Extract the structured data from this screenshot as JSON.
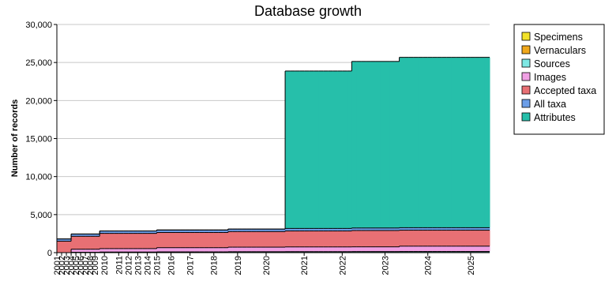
{
  "chart_data": {
    "type": "stacked-step-area",
    "title": "Database growth",
    "y_label": "Number of records",
    "categories": [
      "2001",
      "2002",
      "2003",
      "2004",
      "2005",
      "2006",
      "2007",
      "2008",
      "2009",
      null,
      "2010",
      null,
      null,
      "2011",
      null,
      "2012",
      null,
      "2013",
      null,
      "2014",
      null,
      "2015",
      null,
      null,
      "2016",
      null,
      null,
      null,
      "2017",
      null,
      null,
      null,
      null,
      "2018",
      null,
      null,
      null,
      null,
      "2019",
      null,
      null,
      null,
      null,
      null,
      "2020",
      null,
      null,
      null,
      null,
      null,
      null,
      null,
      "2021",
      null,
      null,
      null,
      null,
      null,
      null,
      null,
      "2022",
      null,
      null,
      null,
      null,
      null,
      null,
      null,
      null,
      "2023",
      null,
      null,
      null,
      null,
      null,
      null,
      null,
      null,
      "2024",
      null,
      null,
      null,
      null,
      null,
      null,
      null,
      null,
      "2025",
      null,
      null,
      null
    ],
    "series": [
      {
        "name": "Specimens",
        "color": "#f2e22a",
        "values": [
          0,
          0,
          0,
          0,
          0,
          0,
          0,
          0,
          0,
          0,
          0,
          0,
          0,
          0,
          0,
          0,
          0,
          0,
          0,
          0,
          0,
          0,
          0,
          0,
          0,
          0,
          0,
          0,
          0,
          0,
          0,
          0,
          0,
          0,
          0,
          0,
          0,
          0,
          0,
          0,
          0,
          0,
          0,
          0,
          0,
          0,
          0,
          0,
          0,
          0,
          0,
          0,
          0,
          0,
          0,
          0,
          0,
          0,
          0,
          0,
          0,
          0,
          0,
          0,
          0,
          0,
          0,
          0,
          0,
          0,
          0,
          0,
          0,
          0,
          0,
          0,
          0,
          0,
          0,
          0,
          0,
          0,
          0,
          0,
          0,
          0,
          0,
          0,
          0,
          0,
          0
        ]
      },
      {
        "name": "Vernaculars",
        "color": "#f0a81c",
        "values": [
          0,
          0,
          0,
          10,
          10,
          10,
          10,
          10,
          10,
          20,
          20,
          20,
          20,
          20,
          20,
          20,
          20,
          20,
          20,
          20,
          20,
          20,
          20,
          20,
          20,
          20,
          20,
          20,
          20,
          20,
          20,
          20,
          20,
          20,
          20,
          20,
          30,
          30,
          30,
          30,
          30,
          30,
          30,
          30,
          30,
          30,
          30,
          30,
          30,
          30,
          30,
          30,
          30,
          30,
          30,
          30,
          30,
          30,
          30,
          30,
          30,
          30,
          30,
          30,
          30,
          30,
          30,
          30,
          30,
          30,
          30,
          30,
          30,
          30,
          30,
          30,
          30,
          30,
          30,
          30,
          30,
          30,
          30,
          30,
          30,
          30,
          30,
          30,
          30,
          30,
          30
        ]
      },
      {
        "name": "Sources",
        "color": "#7ee8e4",
        "values": [
          0,
          0,
          0,
          40,
          40,
          40,
          40,
          40,
          40,
          60,
          60,
          60,
          60,
          60,
          60,
          60,
          60,
          60,
          60,
          60,
          60,
          80,
          80,
          80,
          80,
          80,
          80,
          80,
          80,
          80,
          80,
          80,
          80,
          80,
          80,
          80,
          90,
          90,
          90,
          90,
          90,
          90,
          90,
          90,
          90,
          90,
          90,
          90,
          100,
          100,
          100,
          100,
          100,
          100,
          100,
          100,
          100,
          100,
          100,
          100,
          100,
          100,
          110,
          110,
          110,
          110,
          110,
          110,
          110,
          110,
          110,
          110,
          120,
          120,
          120,
          120,
          120,
          120,
          120,
          120,
          120,
          120,
          120,
          120,
          120,
          120,
          120,
          120,
          120,
          120,
          120
        ]
      },
      {
        "name": "Images",
        "color": "#f0a0e4",
        "values": [
          0,
          0,
          0,
          400,
          400,
          400,
          400,
          400,
          400,
          450,
          450,
          450,
          450,
          450,
          450,
          450,
          450,
          450,
          450,
          450,
          450,
          550,
          550,
          550,
          550,
          550,
          550,
          550,
          550,
          550,
          550,
          550,
          550,
          550,
          550,
          550,
          600,
          600,
          600,
          600,
          600,
          600,
          600,
          600,
          600,
          600,
          600,
          600,
          620,
          620,
          620,
          620,
          620,
          620,
          620,
          620,
          620,
          620,
          620,
          620,
          620,
          620,
          620,
          620,
          620,
          620,
          620,
          620,
          620,
          620,
          620,
          620,
          700,
          700,
          700,
          700,
          700,
          700,
          700,
          700,
          700,
          700,
          700,
          700,
          700,
          700,
          700,
          700,
          700,
          700,
          700
        ]
      },
      {
        "name": "Accepted taxa",
        "color": "#e87074",
        "values": [
          1500,
          1500,
          1500,
          1700,
          1700,
          1700,
          1700,
          1700,
          1700,
          2000,
          2000,
          2000,
          2000,
          2000,
          2000,
          2000,
          2000,
          2000,
          2000,
          2000,
          2000,
          2000,
          2000,
          2000,
          2000,
          2000,
          2000,
          2000,
          2000,
          2000,
          2000,
          2000,
          2000,
          2000,
          2000,
          2000,
          2050,
          2050,
          2050,
          2050,
          2050,
          2050,
          2050,
          2050,
          2050,
          2050,
          2050,
          2050,
          2100,
          2100,
          2100,
          2100,
          2100,
          2100,
          2100,
          2100,
          2100,
          2100,
          2100,
          2100,
          2100,
          2100,
          2150,
          2150,
          2150,
          2150,
          2150,
          2150,
          2150,
          2150,
          2150,
          2150,
          2100,
          2100,
          2100,
          2100,
          2100,
          2100,
          2100,
          2100,
          2100,
          2100,
          2100,
          2100,
          2100,
          2100,
          2100,
          2100,
          2100,
          2100,
          2100
        ]
      },
      {
        "name": "All taxa",
        "color": "#6c9ee8",
        "values": [
          300,
          300,
          300,
          300,
          300,
          300,
          300,
          300,
          300,
          320,
          320,
          320,
          320,
          320,
          320,
          320,
          320,
          320,
          320,
          320,
          320,
          330,
          330,
          330,
          330,
          330,
          330,
          330,
          330,
          330,
          330,
          330,
          330,
          330,
          330,
          330,
          330,
          330,
          330,
          330,
          330,
          330,
          330,
          330,
          330,
          330,
          330,
          330,
          330,
          330,
          330,
          330,
          330,
          330,
          330,
          330,
          330,
          330,
          330,
          330,
          330,
          330,
          330,
          330,
          330,
          330,
          330,
          330,
          330,
          330,
          330,
          330,
          330,
          330,
          330,
          330,
          330,
          330,
          330,
          330,
          330,
          330,
          330,
          330,
          330,
          330,
          330,
          330,
          330,
          330,
          330
        ]
      },
      {
        "name": "Attributes",
        "color": "#26bfaa",
        "values": [
          0,
          0,
          0,
          0,
          0,
          0,
          0,
          0,
          0,
          0,
          0,
          0,
          0,
          0,
          0,
          0,
          0,
          0,
          0,
          0,
          0,
          0,
          0,
          0,
          0,
          0,
          0,
          0,
          0,
          0,
          0,
          0,
          0,
          0,
          0,
          0,
          0,
          0,
          0,
          0,
          0,
          0,
          0,
          0,
          0,
          0,
          0,
          0,
          20700,
          20700,
          20700,
          20700,
          20700,
          20700,
          20700,
          20700,
          20700,
          20700,
          20700,
          20700,
          20700,
          20700,
          21900,
          21900,
          21900,
          21900,
          21900,
          21900,
          21900,
          21900,
          21900,
          21900,
          22400,
          22400,
          22400,
          22400,
          22400,
          22400,
          22400,
          22400,
          22400,
          22400,
          22400,
          22400,
          22400,
          22400,
          22400,
          22400,
          22400,
          22400,
          22400
        ]
      }
    ],
    "ylim": [
      0,
      30000
    ],
    "yticks": [
      0,
      {
        "value": 5000,
        "label": "5,000"
      },
      {
        "value": 10000,
        "label": "10,000"
      },
      {
        "value": 15000,
        "label": "15,000"
      },
      {
        "value": 20000,
        "label": "20,000"
      },
      {
        "value": 25000,
        "label": "25,000"
      },
      {
        "value": 30000,
        "label": "30,000"
      }
    ],
    "grid": true,
    "legend": "right"
  }
}
